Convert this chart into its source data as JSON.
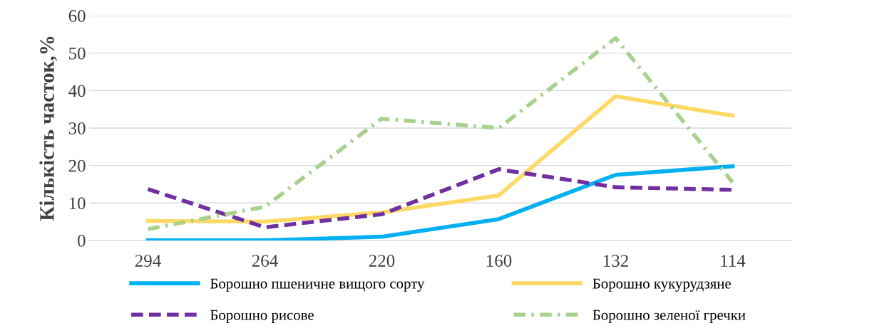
{
  "chart_data": {
    "type": "line",
    "ylabel": "Кількість часток,%",
    "categories": [
      "294",
      "264",
      "220",
      "160",
      "132",
      "114"
    ],
    "series": [
      {
        "name": "Борошно пшеничне вищого сорту",
        "color": "#00b0f0",
        "values": [
          0,
          0,
          1,
          5.7,
          17.5,
          19.8
        ],
        "line_style": "solid"
      },
      {
        "name": "Борошно кукурудзяне",
        "color": "#ffd966",
        "values": [
          5.2,
          5,
          7.5,
          12,
          38.5,
          33.3
        ],
        "line_style": "solid"
      },
      {
        "name": "Борошно рисове",
        "color": "#7030a0",
        "values": [
          13.7,
          3.5,
          7,
          19,
          14.2,
          13.5
        ],
        "line_style": "dashed"
      },
      {
        "name": "Борошно зеленої гречки",
        "color": "#a9d18e",
        "values": [
          3,
          9,
          32.5,
          30,
          54,
          15.5
        ],
        "line_style": "dashdot"
      }
    ],
    "ylim": [
      0,
      60
    ],
    "yticks": [
      0,
      10,
      20,
      30,
      40,
      50,
      60
    ],
    "grid": "y",
    "legend": "bottom"
  }
}
